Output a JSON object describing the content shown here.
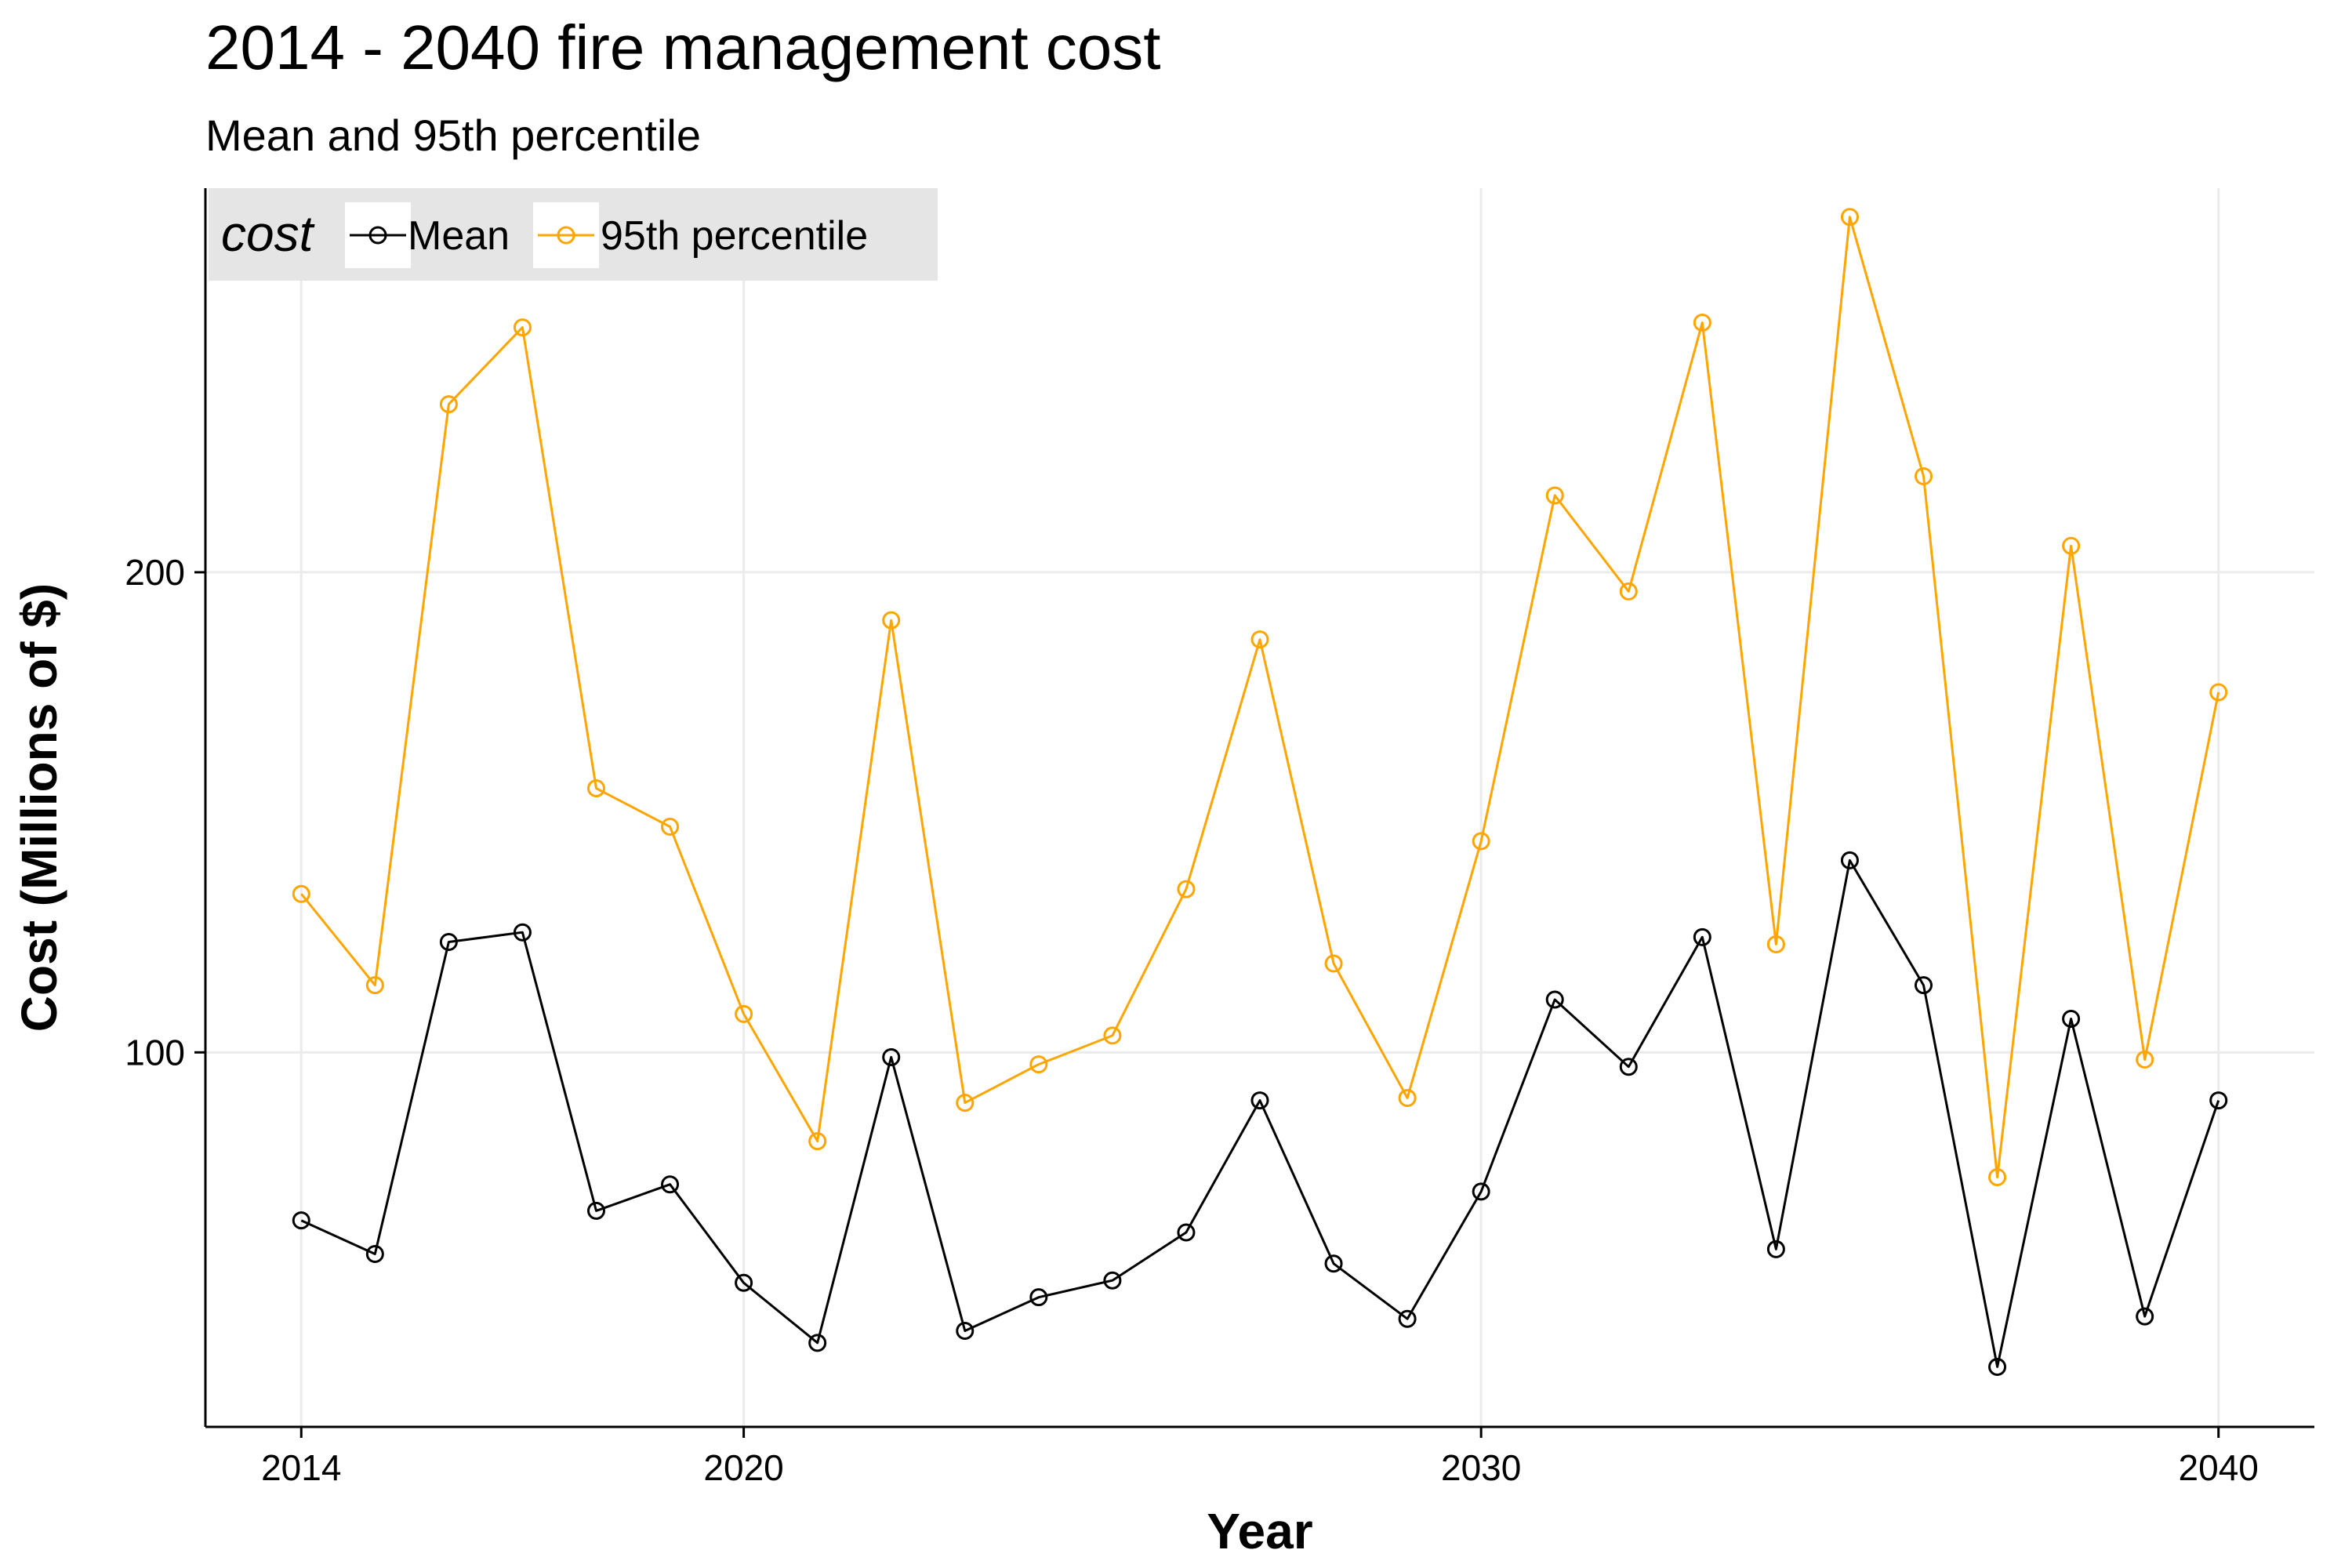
{
  "chart_data": {
    "type": "line",
    "title": "2014 - 2040 fire management cost",
    "subtitle": "Mean and 95th percentile",
    "xlabel": "Year",
    "ylabel": "Cost (Millions of $)",
    "x": [
      2014,
      2015,
      2016,
      2017,
      2018,
      2019,
      2020,
      2021,
      2022,
      2023,
      2024,
      2025,
      2026,
      2027,
      2028,
      2029,
      2030,
      2031,
      2032,
      2033,
      2034,
      2035,
      2036,
      2037,
      2038,
      2039,
      2040
    ],
    "xlim": [
      2012.7,
      2041.3
    ],
    "ylim": [
      22,
      280
    ],
    "x_ticks": [
      2014,
      2020,
      2030,
      2040
    ],
    "y_ticks": [
      100,
      200
    ],
    "grid": true,
    "legend": {
      "title": "cost",
      "position": "top-left"
    },
    "series": [
      {
        "name": "Mean",
        "color": "#000000",
        "values": [
          65,
          58,
          123,
          125,
          67,
          72.5,
          52,
          39.5,
          99,
          42,
          49,
          52.5,
          62.5,
          90,
          56,
          44.5,
          71,
          111,
          97,
          124,
          59,
          140,
          114,
          34.5,
          107,
          45,
          90
        ]
      },
      {
        "name": "95th percentile",
        "color": "#FFA500",
        "values": [
          133,
          114,
          235,
          251,
          155,
          147,
          108,
          81.5,
          190,
          89.5,
          97.5,
          103.5,
          134,
          186,
          118.5,
          90.5,
          144,
          216,
          196,
          252,
          122.5,
          274,
          220,
          74,
          205.5,
          98.5,
          175
        ]
      }
    ]
  }
}
